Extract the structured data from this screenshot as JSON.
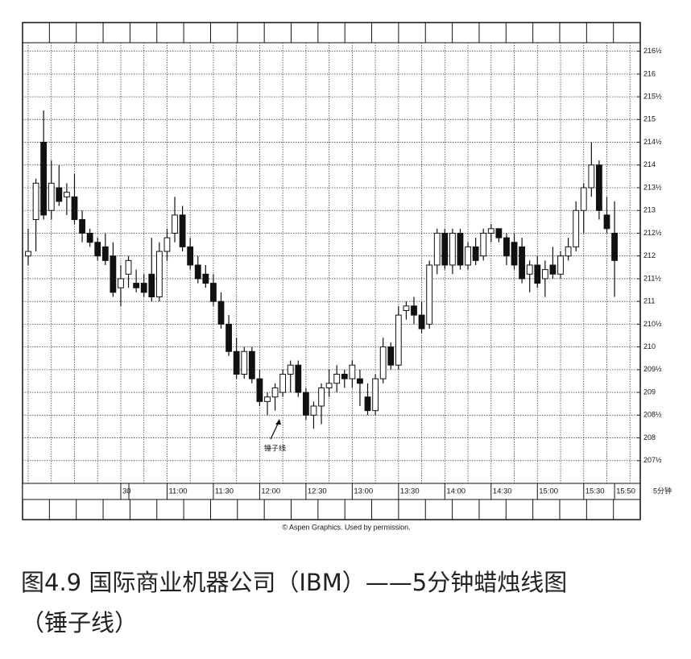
{
  "chart_data": {
    "type": "candlestick",
    "candles": [
      [
        212.0,
        212.6,
        211.8,
        212.1
      ],
      [
        212.8,
        213.7,
        212.1,
        213.6
      ],
      [
        214.5,
        215.2,
        212.8,
        212.9
      ],
      [
        213.0,
        214.1,
        212.8,
        213.6
      ],
      [
        213.5,
        214.0,
        213.1,
        213.2
      ],
      [
        213.3,
        213.6,
        212.9,
        213.4
      ],
      [
        213.3,
        213.8,
        212.7,
        212.8
      ],
      [
        212.8,
        213.0,
        212.3,
        212.5
      ],
      [
        212.5,
        212.6,
        212.2,
        212.3
      ],
      [
        212.3,
        212.4,
        211.9,
        212.0
      ],
      [
        212.2,
        212.5,
        211.8,
        211.9
      ],
      [
        212.0,
        212.3,
        211.1,
        211.2
      ],
      [
        211.3,
        211.8,
        210.9,
        211.5
      ],
      [
        211.6,
        212.0,
        211.3,
        211.9
      ],
      [
        211.4,
        211.7,
        211.2,
        211.3
      ],
      [
        211.4,
        211.6,
        211.1,
        211.2
      ],
      [
        211.6,
        212.4,
        211.0,
        211.1
      ],
      [
        211.1,
        212.3,
        211.0,
        212.1
      ],
      [
        212.1,
        212.6,
        211.9,
        212.4
      ],
      [
        212.5,
        213.3,
        212.3,
        212.9
      ],
      [
        212.9,
        213.1,
        212.1,
        212.2
      ],
      [
        212.2,
        212.4,
        211.7,
        211.8
      ],
      [
        211.8,
        212.0,
        211.4,
        211.5
      ],
      [
        211.6,
        211.8,
        211.3,
        211.4
      ],
      [
        211.4,
        211.6,
        210.9,
        211.0
      ],
      [
        211.0,
        211.2,
        210.4,
        210.5
      ],
      [
        210.5,
        210.7,
        209.8,
        209.9
      ],
      [
        209.9,
        210.2,
        209.3,
        209.4
      ],
      [
        209.4,
        210.0,
        209.3,
        209.9
      ],
      [
        209.9,
        210.0,
        209.2,
        209.3
      ],
      [
        209.3,
        209.5,
        208.7,
        208.8
      ],
      [
        208.8,
        209.0,
        208.5,
        208.9
      ],
      [
        208.9,
        209.2,
        208.6,
        209.1
      ],
      [
        209.0,
        209.5,
        208.9,
        209.4
      ],
      [
        209.4,
        209.7,
        209.0,
        209.6
      ],
      [
        209.6,
        209.7,
        208.9,
        209.0
      ],
      [
        209.0,
        209.1,
        208.4,
        208.5
      ],
      [
        208.5,
        208.8,
        208.2,
        208.7
      ],
      [
        208.7,
        209.2,
        208.3,
        209.1
      ],
      [
        209.1,
        209.5,
        208.9,
        209.2
      ],
      [
        209.2,
        209.6,
        209.0,
        209.4
      ],
      [
        209.4,
        209.5,
        209.1,
        209.3
      ],
      [
        209.3,
        209.7,
        209.1,
        209.6
      ],
      [
        209.3,
        209.5,
        208.7,
        209.2
      ],
      [
        208.9,
        209.2,
        208.5,
        208.6
      ],
      [
        208.6,
        209.4,
        208.5,
        209.3
      ],
      [
        209.3,
        210.2,
        209.2,
        210.0
      ],
      [
        210.0,
        210.1,
        209.5,
        209.6
      ],
      [
        209.6,
        210.9,
        209.5,
        210.7
      ],
      [
        210.8,
        211.0,
        210.6,
        210.9
      ],
      [
        210.9,
        211.1,
        210.5,
        210.7
      ],
      [
        210.7,
        211.0,
        210.3,
        210.4
      ],
      [
        210.5,
        211.9,
        210.4,
        211.8
      ],
      [
        211.8,
        212.6,
        211.6,
        212.5
      ],
      [
        212.5,
        212.6,
        211.7,
        211.8
      ],
      [
        211.8,
        212.6,
        211.6,
        212.5
      ],
      [
        212.5,
        212.6,
        211.7,
        211.8
      ],
      [
        211.8,
        212.3,
        211.7,
        212.2
      ],
      [
        212.2,
        212.4,
        211.8,
        211.9
      ],
      [
        212.0,
        212.6,
        211.9,
        212.5
      ],
      [
        212.5,
        212.7,
        212.3,
        212.6
      ],
      [
        212.6,
        212.6,
        212.3,
        212.4
      ],
      [
        212.4,
        212.5,
        211.8,
        212.0
      ],
      [
        212.3,
        212.5,
        211.7,
        211.8
      ],
      [
        212.2,
        212.4,
        211.4,
        211.5
      ],
      [
        211.6,
        211.9,
        211.2,
        211.8
      ],
      [
        211.8,
        212.0,
        211.3,
        211.4
      ],
      [
        211.5,
        211.9,
        211.1,
        211.7
      ],
      [
        211.8,
        212.2,
        211.5,
        211.6
      ],
      [
        211.6,
        212.1,
        211.5,
        212.0
      ],
      [
        212.0,
        212.4,
        211.9,
        212.2
      ],
      [
        212.2,
        213.2,
        212.1,
        213.0
      ],
      [
        213.0,
        213.6,
        212.5,
        213.5
      ],
      [
        213.5,
        214.5,
        213.3,
        214.0
      ],
      [
        214.0,
        214.1,
        212.8,
        213.0
      ],
      [
        212.9,
        213.3,
        212.5,
        212.6
      ],
      [
        212.5,
        213.2,
        211.1,
        211.9
      ]
    ],
    "categories": [
      null,
      null,
      null,
      null,
      null,
      null,
      null,
      null,
      null,
      null,
      null,
      null,
      "30",
      null,
      null,
      null,
      null,
      null,
      "11:00",
      null,
      null,
      null,
      null,
      null,
      "11:30",
      null,
      null,
      null,
      null,
      null,
      "12:00",
      null,
      null,
      null,
      null,
      null,
      "12:30",
      null,
      null,
      null,
      null,
      null,
      "13:00",
      null,
      null,
      null,
      null,
      null,
      "13:30",
      null,
      null,
      null,
      null,
      null,
      "14:00",
      null,
      null,
      null,
      null,
      null,
      "14:30",
      null,
      null,
      null,
      null,
      null,
      "15:00",
      null,
      null,
      null,
      null,
      null,
      "15:30",
      null,
      null,
      null,
      "15:50"
    ],
    "x_unit": "5分钟",
    "ylim": [
      207,
      216.6
    ],
    "yticks": [
      {
        "value": 207.5,
        "label": "207½"
      },
      208,
      {
        "value": 208.5,
        "label": "208½"
      },
      209,
      {
        "value": 209.5,
        "label": "209½"
      },
      210,
      {
        "value": 210.5,
        "label": "210½"
      },
      211,
      {
        "value": 211.5,
        "label": "211½"
      },
      212,
      {
        "value": 212.5,
        "label": "212½"
      },
      213,
      {
        "value": 213.5,
        "label": "213½"
      },
      214,
      {
        "value": 214.5,
        "label": "214½"
      },
      215,
      {
        "value": 215.5,
        "label": "215½"
      },
      216,
      {
        "value": 216.5,
        "label": "216½"
      }
    ],
    "grid": true,
    "up_color": "#ffffff",
    "down_color": "#111111",
    "annotation": "锤子线",
    "credit": "© Aspen Graphics. Used by permission."
  },
  "caption": {
    "line1": "图4.9 国际商业机器公司（IBM）——5分钟蜡烛线图",
    "line2": "（锤子线）"
  }
}
